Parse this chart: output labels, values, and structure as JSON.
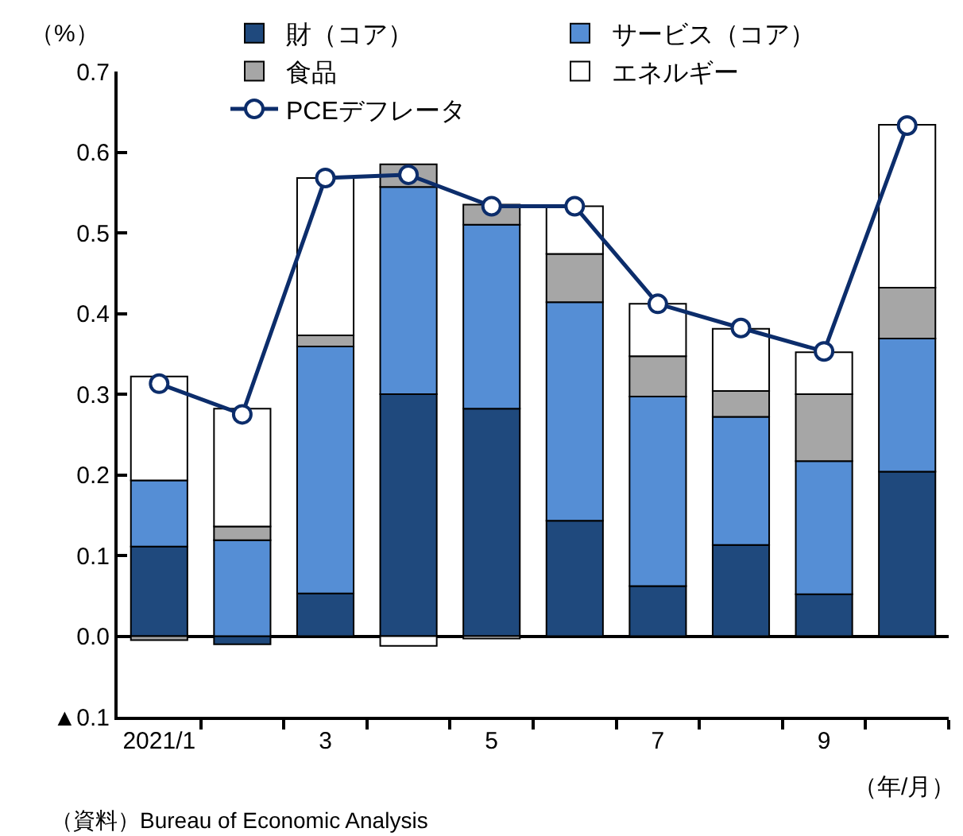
{
  "chart_data": {
    "type": "bar",
    "stacked": true,
    "ylabel": "（%）",
    "xlabel": "（年/月）",
    "annotations": [
      "（資料）Bureau of Economic Analysis"
    ],
    "categories": [
      "2021/1",
      null,
      "3",
      null,
      "5",
      null,
      "7",
      null,
      "9",
      null
    ],
    "series": [
      {
        "name": "財（コア）",
        "color": "#1f497d",
        "values": [
          0.111,
          -0.01,
          0.053,
          0.3,
          0.282,
          0.143,
          0.062,
          0.113,
          0.052,
          0.204
        ]
      },
      {
        "name": "サービス（コア）",
        "color": "#558ed5",
        "values": [
          0.082,
          0.119,
          0.306,
          0.257,
          0.228,
          0.271,
          0.235,
          0.159,
          0.165,
          0.165
        ]
      },
      {
        "name": "食品",
        "color": "#a6a6a6",
        "values": [
          -0.005,
          0.017,
          0.014,
          0.028,
          0.025,
          0.06,
          0.05,
          0.032,
          0.083,
          0.063
        ]
      },
      {
        "name": "エネルギー",
        "color": "#ffffff",
        "values": [
          0.129,
          0.146,
          0.195,
          -0.012,
          -0.003,
          0.059,
          0.065,
          0.077,
          0.052,
          0.202
        ]
      },
      {
        "name": "PCEデフレータ",
        "type": "line",
        "color": "#0c2d6b",
        "values": [
          0.313,
          0.275,
          0.568,
          0.572,
          0.533,
          0.533,
          0.412,
          0.382,
          0.353,
          0.633
        ]
      }
    ],
    "ylim": [
      -0.1,
      0.7
    ],
    "yticks": [
      {
        "value": -0.1,
        "label": "▲0.1"
      },
      {
        "value": 0,
        "label": "0.0"
      },
      0.1,
      0.2,
      0.3,
      0.4,
      0.5,
      0.6,
      0.7
    ],
    "marker": "circle",
    "legend": "top"
  }
}
